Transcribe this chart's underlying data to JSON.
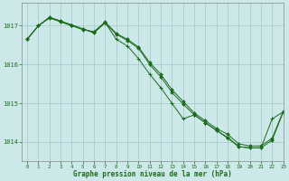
{
  "title": "Graphe pression niveau de la mer (hPa)",
  "background_color": "#cce8e8",
  "grid_color": "#aacccc",
  "line_color": "#1a6b1a",
  "xlim": [
    -0.5,
    23
  ],
  "ylim": [
    1013.5,
    1017.6
  ],
  "yticks": [
    1014,
    1015,
    1016,
    1017
  ],
  "xticks": [
    0,
    1,
    2,
    3,
    4,
    5,
    6,
    7,
    8,
    9,
    10,
    11,
    12,
    13,
    14,
    15,
    16,
    17,
    18,
    19,
    20,
    21,
    22,
    23
  ],
  "series1_x": [
    0,
    1,
    2,
    3,
    4,
    5,
    6,
    7,
    8,
    9,
    10,
    11,
    12,
    13,
    14,
    15,
    16,
    17,
    18,
    19,
    20,
    21,
    22,
    23
  ],
  "series1_y": [
    1016.65,
    1017.0,
    1017.2,
    1017.1,
    1017.0,
    1016.9,
    1016.85,
    1017.1,
    1016.8,
    1016.65,
    1016.45,
    1016.05,
    1015.75,
    1015.35,
    1015.05,
    1014.75,
    1014.55,
    1014.35,
    1014.2,
    1013.95,
    1013.9,
    1013.9,
    1014.1,
    1014.8
  ],
  "series2_x": [
    0,
    1,
    2,
    3,
    4,
    5,
    6,
    7,
    8,
    9,
    10,
    11,
    12,
    13,
    14,
    15,
    16,
    17,
    18,
    19,
    20,
    21,
    22,
    23
  ],
  "series2_y": [
    1016.65,
    1017.0,
    1017.22,
    1017.12,
    1017.02,
    1016.92,
    1016.82,
    1017.08,
    1016.78,
    1016.62,
    1016.42,
    1016.0,
    1015.68,
    1015.28,
    1014.98,
    1014.7,
    1014.5,
    1014.3,
    1014.12,
    1013.88,
    1013.85,
    1013.85,
    1014.05,
    1014.78
  ],
  "series3_x": [
    0,
    1,
    2,
    3,
    4,
    5,
    6,
    7,
    8,
    9,
    10,
    11,
    12,
    13,
    14,
    15,
    16,
    17,
    18,
    19,
    20,
    21,
    22,
    23
  ],
  "series3_y": [
    1016.65,
    1017.0,
    1017.22,
    1017.12,
    1017.02,
    1016.92,
    1016.82,
    1017.08,
    1016.65,
    1016.48,
    1016.15,
    1015.75,
    1015.4,
    1015.0,
    1014.6,
    1014.7,
    1014.5,
    1014.3,
    1014.1,
    1013.88,
    1013.85,
    1013.85,
    1014.6,
    1014.78
  ]
}
